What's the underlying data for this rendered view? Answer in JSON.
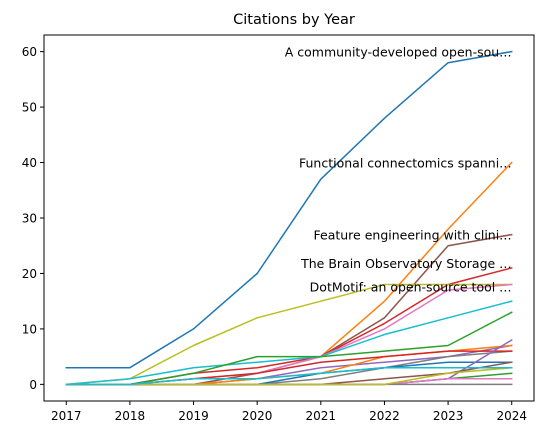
{
  "chart_data": {
    "type": "line",
    "title": "Citations by Year",
    "xlabel": "",
    "ylabel": "",
    "x": [
      2017,
      2018,
      2019,
      2020,
      2021,
      2022,
      2023,
      2024
    ],
    "xticks": [
      "2017",
      "2018",
      "2019",
      "2020",
      "2021",
      "2022",
      "2023",
      "2024"
    ],
    "yticks": [
      0,
      10,
      20,
      30,
      40,
      50,
      60
    ],
    "xlim": [
      2016.65,
      2024.35
    ],
    "ylim": [
      -3,
      63
    ],
    "grid": false,
    "legend": "none",
    "series": [
      {
        "color": "#1f77b4",
        "values": [
          3,
          3,
          10,
          20,
          37,
          48,
          58,
          60
        ],
        "label": "A community-developed open-sou…"
      },
      {
        "color": "#ff7f0e",
        "values": [
          null,
          null,
          null,
          null,
          5,
          15,
          28,
          40
        ],
        "label": "Functional connectomics spanni…"
      },
      {
        "color": "#8c564b",
        "values": [
          0,
          0,
          0,
          2,
          5,
          12,
          25,
          27
        ],
        "label": "Feature engineering with clini…"
      },
      {
        "color": "#d62728",
        "values": [
          0,
          0,
          2,
          3,
          5,
          11,
          18,
          21
        ],
        "label": "The Brain Observatory Storage …"
      },
      {
        "color": "#bcbd22",
        "values": [
          0,
          1,
          7,
          12,
          15,
          18,
          18,
          18
        ],
        "label": "DotMotif: an open-source tool …"
      },
      {
        "color": "#e377c2",
        "values": [
          0,
          0,
          1,
          2,
          5,
          10,
          17,
          18
        ]
      },
      {
        "color": "#17becf",
        "values": [
          0,
          1,
          3,
          4,
          5,
          9,
          12,
          15
        ]
      },
      {
        "color": "#2ca02c",
        "values": [
          0,
          0,
          2,
          5,
          5,
          6,
          7,
          13
        ]
      },
      {
        "color": "#9467bd",
        "values": [
          0,
          0,
          0,
          1,
          3,
          4,
          5,
          7
        ]
      },
      {
        "color": "#7f7f7f",
        "values": [
          0,
          0,
          0,
          0,
          1,
          3,
          5,
          6
        ]
      },
      {
        "color": "#1f77b4",
        "values": [
          0,
          0,
          0,
          0,
          2,
          3,
          4,
          4
        ]
      },
      {
        "color": "#ff7f0e",
        "values": [
          0,
          0,
          0,
          1,
          2,
          5,
          6,
          7
        ]
      },
      {
        "color": "#2ca02c",
        "values": [
          0,
          0,
          0,
          0,
          0,
          0,
          1,
          2
        ]
      },
      {
        "color": "#d62728",
        "values": [
          0,
          0,
          1,
          2,
          4,
          5,
          6,
          6
        ]
      },
      {
        "color": "#9467bd",
        "values": [
          0,
          0,
          0,
          0,
          0,
          0,
          1,
          8
        ]
      },
      {
        "color": "#8c564b",
        "values": [
          0,
          0,
          0,
          0,
          0,
          1,
          2,
          4
        ]
      },
      {
        "color": "#e377c2",
        "values": [
          0,
          0,
          0,
          0,
          0,
          0,
          1,
          1
        ]
      },
      {
        "color": "#7f7f7f",
        "values": [
          0,
          0,
          0,
          0,
          0,
          0,
          0,
          0
        ]
      },
      {
        "color": "#bcbd22",
        "values": [
          0,
          0,
          0,
          0,
          0,
          0,
          2,
          3
        ]
      },
      {
        "color": "#17becf",
        "values": [
          0,
          0,
          1,
          1,
          2,
          3,
          3,
          3
        ]
      }
    ]
  }
}
